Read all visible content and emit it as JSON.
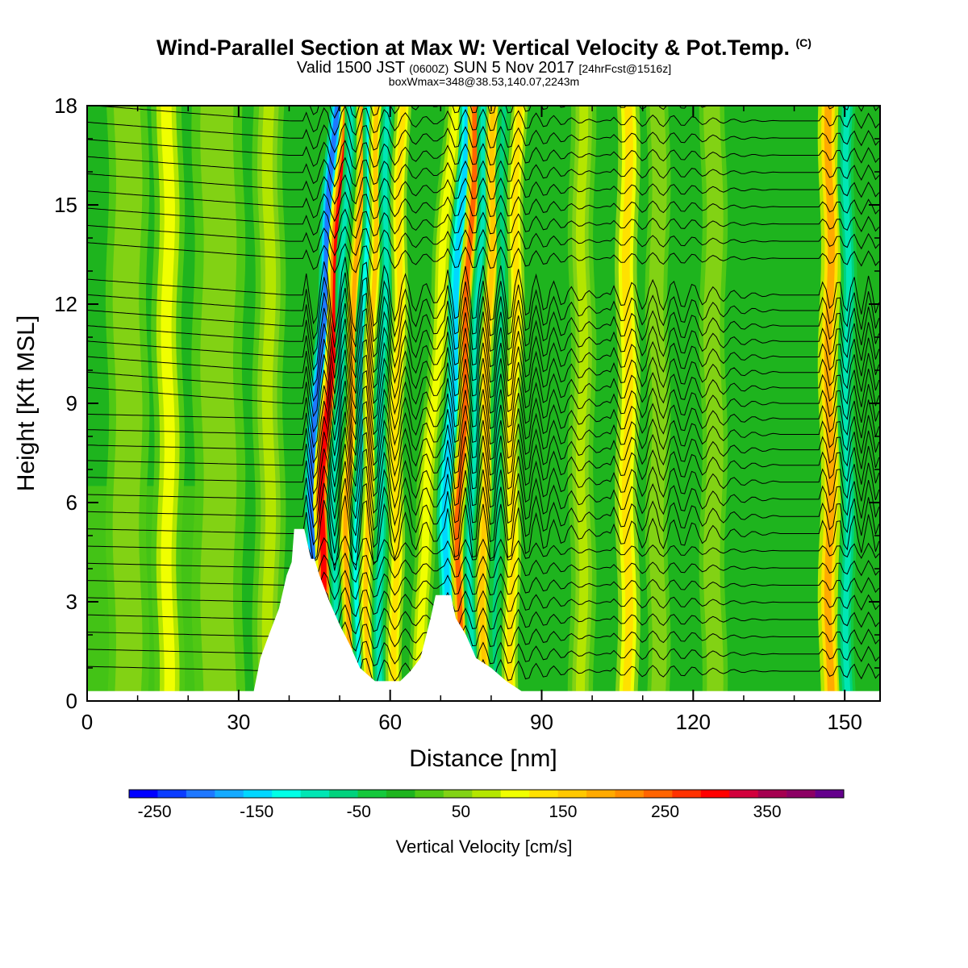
{
  "title": {
    "main": "Wind-Parallel Section at Max W: Vertical Velocity & Pot.Temp.",
    "copyright": "(C)",
    "valid_prefix": "Valid 1500 JST",
    "valid_utc": "(0600Z)",
    "valid_date": "SUN 5 Nov 2017",
    "forecast": "[24hrFcst@1516z]",
    "box": "boxWmax=348@38.53,140.07,2243m"
  },
  "chart_data": {
    "type": "heatmap",
    "xlabel": "Distance [nm]",
    "ylabel": "Height [Kft MSL]",
    "xlim": [
      0,
      157
    ],
    "ylim": [
      0,
      18
    ],
    "x_ticks": [
      0,
      30,
      60,
      90,
      120,
      150
    ],
    "y_ticks": [
      0,
      3,
      6,
      9,
      12,
      15,
      18
    ],
    "colorbar": {
      "title": "Vertical Velocity [cm/s]",
      "tick_values": [
        -250,
        -150,
        -50,
        50,
        150,
        250,
        350
      ],
      "tick_labels": [
        "-250",
        "-150",
        "-50",
        "50",
        "150",
        "250",
        "350"
      ],
      "range": [
        -275,
        425
      ],
      "colors": [
        "#0000ff",
        "#0a3cff",
        "#1e78ff",
        "#14aaff",
        "#00d7ff",
        "#00ffe6",
        "#00e6b4",
        "#00d27d",
        "#14c83c",
        "#1eb41e",
        "#50c814",
        "#82d214",
        "#b4e600",
        "#f0ff00",
        "#ffe100",
        "#ffc800",
        "#ffaa00",
        "#ff8c00",
        "#ff6400",
        "#ff3200",
        "#ff0000",
        "#d2003c",
        "#a50050",
        "#8c0064",
        "#64008c"
      ]
    },
    "terrain": [
      [
        0,
        0.3
      ],
      [
        30,
        0.3
      ],
      [
        33,
        0.3
      ],
      [
        34.3,
        1.3
      ],
      [
        36,
        2.0
      ],
      [
        38,
        2.8
      ],
      [
        39.5,
        3.8
      ],
      [
        40.5,
        4.2
      ],
      [
        41,
        5.2
      ],
      [
        43,
        5.2
      ],
      [
        44.3,
        4.3
      ],
      [
        45,
        4.3
      ],
      [
        46,
        3.8
      ],
      [
        48,
        3.0
      ],
      [
        50,
        2.3
      ],
      [
        52,
        1.7
      ],
      [
        54,
        1.0
      ],
      [
        57,
        0.6
      ],
      [
        62,
        0.6
      ],
      [
        64,
        0.9
      ],
      [
        66,
        1.3
      ],
      [
        68,
        2.5
      ],
      [
        69,
        3.2
      ],
      [
        72,
        3.2
      ],
      [
        73,
        2.5
      ],
      [
        75,
        2.0
      ],
      [
        77,
        1.3
      ],
      [
        80,
        1.0
      ],
      [
        83,
        0.6
      ],
      [
        86,
        0.3
      ],
      [
        157,
        0.3
      ]
    ],
    "bands": [
      {
        "x": 8,
        "w": 4,
        "v": 55
      },
      {
        "x": 16,
        "w": 3,
        "v": 90
      },
      {
        "x": 26,
        "w": 5,
        "v": 55
      },
      {
        "x": 36,
        "w": 3,
        "v": 85
      },
      {
        "x": 44.3,
        "w": 1.4,
        "v": -210,
        "top": 6.1,
        "slope": 0.19
      },
      {
        "x": 46.5,
        "w": 1.6,
        "v": 300,
        "top": 6.0,
        "slope": 0.19
      },
      {
        "x": 48.9,
        "w": 1.2,
        "v": -95,
        "top": 6.0,
        "slope": 0.12
      },
      {
        "x": 51.5,
        "w": 1.2,
        "v": 190,
        "top": 6.0,
        "slope": 0.12
      },
      {
        "x": 53.5,
        "w": 1.2,
        "v": -110,
        "top": 6.0,
        "slope": 0.1
      },
      {
        "x": 55.5,
        "w": 1.3,
        "v": 160,
        "top": 6.0,
        "slope": 0.08
      },
      {
        "x": 58,
        "w": 1.3,
        "v": -80,
        "top": 6.0,
        "slope": 0.06
      },
      {
        "x": 61,
        "w": 1.6,
        "v": 130,
        "top": 6.0,
        "slope": 0.05
      },
      {
        "x": 66,
        "w": 2.0,
        "v": 90,
        "top": 3.0,
        "slope": 0.2
      },
      {
        "x": 71,
        "w": 1.5,
        "v": -160,
        "top": 5.5,
        "slope": 0.15
      },
      {
        "x": 73.6,
        "w": 1.4,
        "v": 240,
        "top": 5.5,
        "slope": 0.12
      },
      {
        "x": 76,
        "w": 1.2,
        "v": -90,
        "top": 5.5,
        "slope": 0.1
      },
      {
        "x": 78.5,
        "w": 1.3,
        "v": 170,
        "top": 5.5,
        "slope": 0.08
      },
      {
        "x": 81,
        "w": 1.2,
        "v": -70,
        "top": 5.5,
        "slope": 0.06
      },
      {
        "x": 84,
        "w": 1.6,
        "v": 130,
        "top": 5.5,
        "slope": 0.05
      },
      {
        "x": 98,
        "w": 2.5,
        "v": 65,
        "top": 0,
        "slope": 0
      },
      {
        "x": 107,
        "w": 2.2,
        "v": 140,
        "top": 0,
        "slope": 0
      },
      {
        "x": 113,
        "w": 2.2,
        "v": 60,
        "top": 0,
        "slope": 0
      },
      {
        "x": 124,
        "w": 2.5,
        "v": 55,
        "top": 0,
        "slope": 0
      },
      {
        "x": 147,
        "w": 2.0,
        "v": 175,
        "top": 0,
        "slope": 0
      },
      {
        "x": 150.5,
        "w": 1.6,
        "v": -100,
        "top": 0,
        "slope": 0
      }
    ]
  }
}
